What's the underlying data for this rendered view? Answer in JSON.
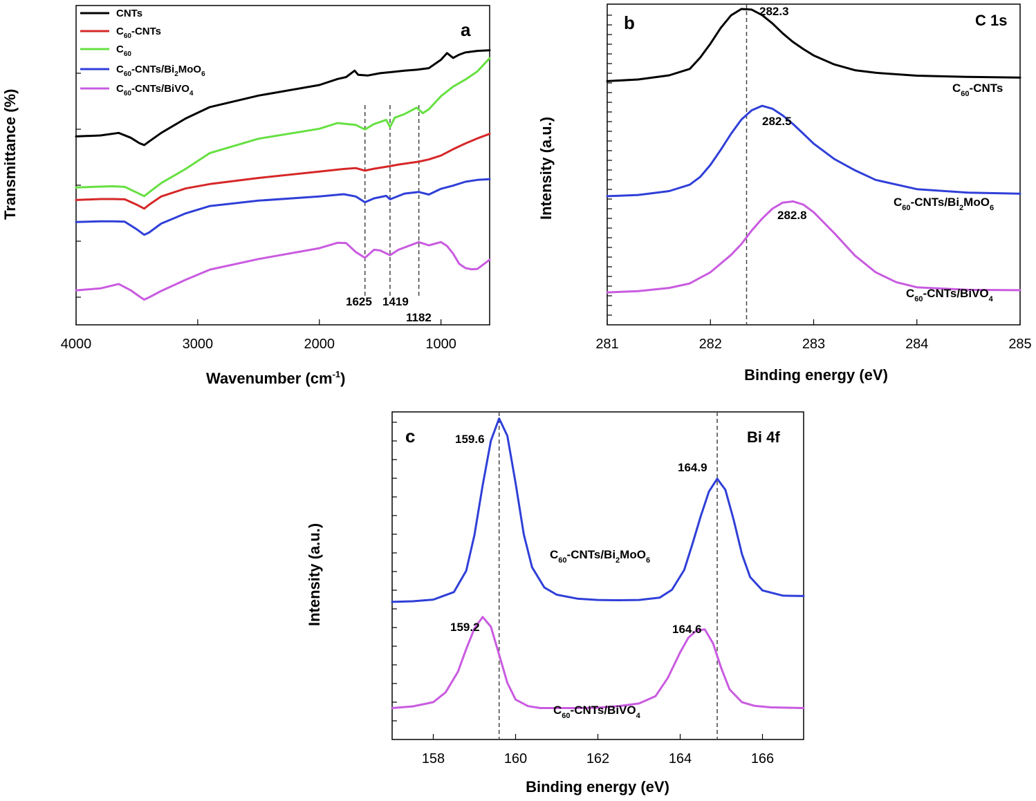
{
  "chart_data": [
    {
      "panel": "a",
      "type": "line",
      "xlabel": "Wavenumber (cm-1)",
      "ylabel": "Transmittance (%)",
      "xlim": [
        4000,
        600
      ],
      "x_reversed": true,
      "xticks": [
        "4000",
        "3000",
        "2000",
        "1000"
      ],
      "legend_position": "top-left",
      "series": [
        {
          "name": "CNTs",
          "color": "#000000",
          "x": [
            4000,
            3800,
            3650,
            3550,
            3480,
            3440,
            3400,
            3300,
            3100,
            2900,
            2500,
            2000,
            1850,
            1780,
            1710,
            1680,
            1600,
            1500,
            1400,
            1300,
            1200,
            1100,
            1000,
            950,
            900,
            850,
            800,
            700,
            600
          ],
          "y": [
            59.0,
            59.3,
            60.1,
            58.6,
            56.9,
            56.3,
            57.4,
            60.1,
            64.6,
            68.2,
            71.8,
            75.1,
            77.0,
            77.6,
            79.6,
            78.3,
            78.1,
            78.8,
            79.2,
            79.6,
            79.9,
            80.4,
            83.0,
            85.1,
            83.6,
            84.6,
            85.3,
            85.8,
            86.0
          ]
        },
        {
          "name": "C60-CNTs",
          "color": "#d62728",
          "x": [
            4000,
            3800,
            3700,
            3600,
            3500,
            3440,
            3400,
            3300,
            3100,
            2900,
            2500,
            2000,
            1800,
            1700,
            1625,
            1550,
            1419,
            1350,
            1182,
            1100,
            1000,
            900,
            800,
            700,
            600
          ],
          "y": [
            39.1,
            39.4,
            39.4,
            39.3,
            37.6,
            36.4,
            37.6,
            40.2,
            42.7,
            44.1,
            46.0,
            48.0,
            48.8,
            49.1,
            48.3,
            48.9,
            49.7,
            50.2,
            51.1,
            51.8,
            53.0,
            55.0,
            56.8,
            58.4,
            59.8
          ]
        },
        {
          "name": "C60",
          "color": "#66e042",
          "x": [
            4000,
            3800,
            3700,
            3600,
            3500,
            3440,
            3400,
            3300,
            3100,
            2900,
            2500,
            2000,
            1850,
            1700,
            1625,
            1550,
            1450,
            1419,
            1380,
            1300,
            1200,
            1150,
            1100,
            1000,
            900,
            800,
            700,
            600
          ],
          "y": [
            43.0,
            43.3,
            43.4,
            43.2,
            41.4,
            40.3,
            41.5,
            44.4,
            48.8,
            53.8,
            58.3,
            61.4,
            63.2,
            62.6,
            61.2,
            62.9,
            64.2,
            61.9,
            64.9,
            66.0,
            68.0,
            66.3,
            67.5,
            71.6,
            74.6,
            76.8,
            79.4,
            83.5
          ]
        },
        {
          "name": "C60-CNTs/Bi2MoO6",
          "color": "#2f3fd8",
          "x": [
            4000,
            3800,
            3700,
            3600,
            3500,
            3440,
            3400,
            3300,
            3100,
            2900,
            2500,
            2000,
            1800,
            1700,
            1625,
            1550,
            1450,
            1419,
            1300,
            1182,
            1100,
            1000,
            900,
            800,
            700,
            600
          ],
          "y": [
            32.2,
            32.4,
            32.4,
            32.3,
            29.9,
            28.2,
            28.9,
            31.7,
            34.9,
            37.2,
            38.9,
            40.2,
            40.9,
            40.2,
            38.4,
            39.6,
            40.4,
            39.3,
            41.1,
            41.6,
            40.8,
            42.6,
            43.6,
            44.8,
            45.4,
            45.6
          ]
        },
        {
          "name": "C60-CNTs/BiVO4",
          "color": "#c95be0",
          "x": [
            4000,
            3800,
            3650,
            3550,
            3480,
            3440,
            3400,
            3300,
            3100,
            2900,
            2500,
            2000,
            1850,
            1780,
            1700,
            1625,
            1550,
            1500,
            1419,
            1350,
            1182,
            1100,
            1000,
            950,
            900,
            850,
            800,
            750,
            700,
            600
          ],
          "y": [
            10.8,
            11.4,
            12.8,
            10.8,
            8.9,
            7.9,
            8.6,
            10.6,
            14.1,
            17.3,
            20.6,
            24.0,
            25.7,
            25.6,
            22.8,
            21.0,
            23.5,
            23.3,
            21.8,
            23.5,
            25.9,
            24.9,
            25.9,
            24.7,
            22.3,
            19.1,
            17.8,
            17.4,
            17.5,
            20.4
          ]
        }
      ],
      "annotations": [
        "a",
        "1625",
        "1419",
        "1182"
      ],
      "reference_lines": [
        1625,
        1419,
        1182
      ]
    },
    {
      "panel": "b",
      "type": "line",
      "title": "C 1s",
      "xlabel": "Binding energy (eV)",
      "ylabel": "Intensity (a.u.)",
      "xlim": [
        281,
        285
      ],
      "xticks": [
        "281",
        "282",
        "283",
        "284",
        "285"
      ],
      "series": [
        {
          "name": "C60-CNTs",
          "color": "#000000",
          "x": [
            281.0,
            281.3,
            281.6,
            281.8,
            281.9,
            282.0,
            282.1,
            282.2,
            282.3,
            282.4,
            282.5,
            282.6,
            282.7,
            282.8,
            282.9,
            283.0,
            283.2,
            283.4,
            283.6,
            284.0,
            284.5,
            285.0
          ],
          "y": [
            76.0,
            76.5,
            77.8,
            79.8,
            83.3,
            87.7,
            92.6,
            96.5,
            98.5,
            98.3,
            96.6,
            94.0,
            90.9,
            88.2,
            86.0,
            84.0,
            81.2,
            79.4,
            78.6,
            77.7,
            77.3,
            77.1
          ]
        },
        {
          "name": "C60-CNTs/Bi2MoO6",
          "color": "#2f3fd8",
          "x": [
            281.0,
            281.3,
            281.6,
            281.8,
            281.9,
            282.0,
            282.1,
            282.2,
            282.3,
            282.4,
            282.5,
            282.6,
            282.7,
            282.8,
            282.9,
            283.0,
            283.2,
            283.4,
            283.6,
            284.0,
            284.5,
            285.0
          ],
          "y": [
            40.1,
            40.5,
            41.7,
            43.7,
            46.1,
            49.9,
            54.6,
            59.6,
            64.0,
            66.9,
            68.3,
            67.4,
            65.3,
            62.6,
            59.6,
            56.5,
            51.7,
            48.2,
            45.2,
            42.3,
            41.2,
            40.9
          ]
        },
        {
          "name": "C60-CNTs/BiVO4",
          "color": "#c95be0",
          "x": [
            281.0,
            281.3,
            281.6,
            281.8,
            282.0,
            282.2,
            282.3,
            282.4,
            282.5,
            282.6,
            282.7,
            282.8,
            282.9,
            283.0,
            283.2,
            283.4,
            283.6,
            283.8,
            284.0,
            284.5,
            285.0
          ],
          "y": [
            10.1,
            10.5,
            11.5,
            12.9,
            16.4,
            21.8,
            25.2,
            29.4,
            33.1,
            36.2,
            38.1,
            38.5,
            37.5,
            35.1,
            28.6,
            21.6,
            16.4,
            13.3,
            11.7,
            10.9,
            10.8
          ]
        }
      ],
      "annotations": [
        "b",
        "282.3",
        "282.5",
        "282.8"
      ],
      "reference_lines": [
        282.35
      ]
    },
    {
      "panel": "c",
      "type": "line",
      "title": "Bi 4f",
      "xlabel": "Binding energy (eV)",
      "ylabel": "Intensity (a.u.)",
      "xlim": [
        157,
        167
      ],
      "xticks": [
        "158",
        "160",
        "162",
        "164",
        "166"
      ],
      "series": [
        {
          "name": "C60-CNTs/Bi2MoO6",
          "color": "#2f3fd8",
          "x": [
            157.0,
            157.5,
            158.0,
            158.5,
            158.8,
            159.0,
            159.2,
            159.4,
            159.6,
            159.8,
            160.0,
            160.2,
            160.4,
            160.7,
            161.0,
            161.5,
            162.0,
            162.5,
            163.0,
            163.5,
            163.8,
            164.1,
            164.3,
            164.5,
            164.7,
            164.9,
            165.1,
            165.3,
            165.5,
            165.7,
            166.0,
            166.5,
            167.0
          ],
          "y": [
            42.0,
            42.2,
            42.7,
            45.0,
            51.5,
            62.4,
            77.6,
            91.2,
            98.0,
            92.7,
            78.3,
            62.6,
            52.6,
            46.4,
            44.2,
            43.0,
            42.6,
            42.5,
            42.6,
            43.3,
            45.7,
            51.8,
            59.8,
            68.2,
            75.7,
            79.6,
            76.2,
            67.0,
            56.6,
            49.6,
            45.5,
            43.9,
            43.8
          ]
        },
        {
          "name": "C60-CNTs/BiVO4",
          "color": "#c95be0",
          "x": [
            157.0,
            157.5,
            158.0,
            158.3,
            158.6,
            158.8,
            159.0,
            159.2,
            159.4,
            159.6,
            159.8,
            160.0,
            160.3,
            160.6,
            161.0,
            161.5,
            162.0,
            162.5,
            163.0,
            163.4,
            163.7,
            164.0,
            164.2,
            164.4,
            164.6,
            164.8,
            165.0,
            165.2,
            165.5,
            165.8,
            166.2,
            167.0
          ],
          "y": [
            9.6,
            10.1,
            11.4,
            14.4,
            20.7,
            27.6,
            33.9,
            37.4,
            34.4,
            25.9,
            17.3,
            12.2,
            10.2,
            9.6,
            9.6,
            9.6,
            9.7,
            10.2,
            11.0,
            13.2,
            18.8,
            26.6,
            31.1,
            33.3,
            33.6,
            29.3,
            21.7,
            15.3,
            11.4,
            10.3,
            9.8,
            9.6
          ]
        }
      ],
      "annotations": [
        "c",
        "159.6",
        "164.9",
        "159.2",
        "164.6"
      ],
      "reference_lines": [
        159.6,
        164.9
      ]
    }
  ]
}
